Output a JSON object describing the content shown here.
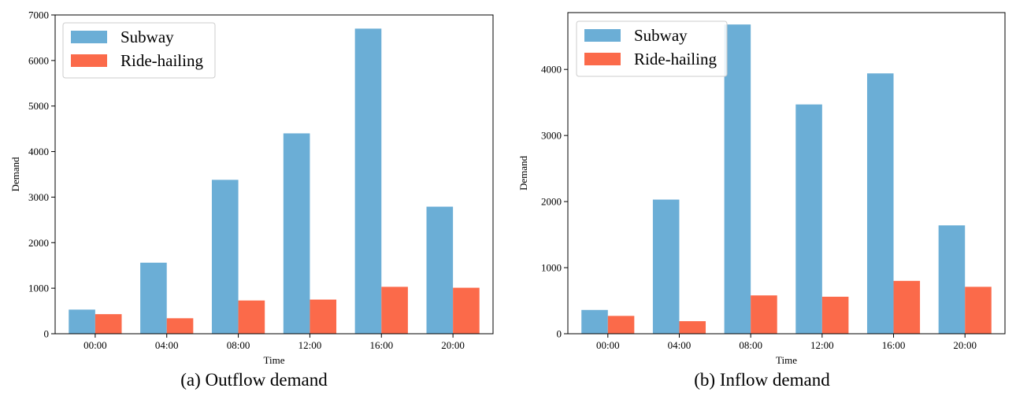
{
  "colors": {
    "subway": "#6BAED6",
    "ride_hailing": "#FB6A4A"
  },
  "captions": [
    "(a) Outflow demand",
    "(b) Inflow demand"
  ],
  "chart_data": [
    {
      "type": "bar",
      "caption": "(a) Outflow demand",
      "xlabel": "Time",
      "ylabel": "Demand",
      "categories": [
        "00:00",
        "04:00",
        "08:00",
        "12:00",
        "16:00",
        "20:00"
      ],
      "ylim": [
        0,
        7000
      ],
      "yticks": [
        0,
        1000,
        2000,
        3000,
        4000,
        5000,
        6000,
        7000
      ],
      "legend_position": "top-left",
      "series": [
        {
          "name": "Subway",
          "values": [
            530,
            1560,
            3380,
            4400,
            6700,
            2790
          ]
        },
        {
          "name": "Ride-hailing",
          "values": [
            430,
            340,
            730,
            750,
            1030,
            1010
          ]
        }
      ]
    },
    {
      "type": "bar",
      "caption": "(b) Inflow demand",
      "xlabel": "Time",
      "ylabel": "Demand",
      "categories": [
        "00:00",
        "04:00",
        "08:00",
        "12:00",
        "16:00",
        "20:00"
      ],
      "ylim": [
        0,
        4860
      ],
      "yticks": [
        0,
        1000,
        2000,
        3000,
        4000
      ],
      "legend_position": "top-left",
      "series": [
        {
          "name": "Subway",
          "values": [
            360,
            2030,
            4680,
            3470,
            3940,
            1640
          ]
        },
        {
          "name": "Ride-hailing",
          "values": [
            270,
            190,
            580,
            560,
            800,
            710
          ]
        }
      ]
    }
  ]
}
